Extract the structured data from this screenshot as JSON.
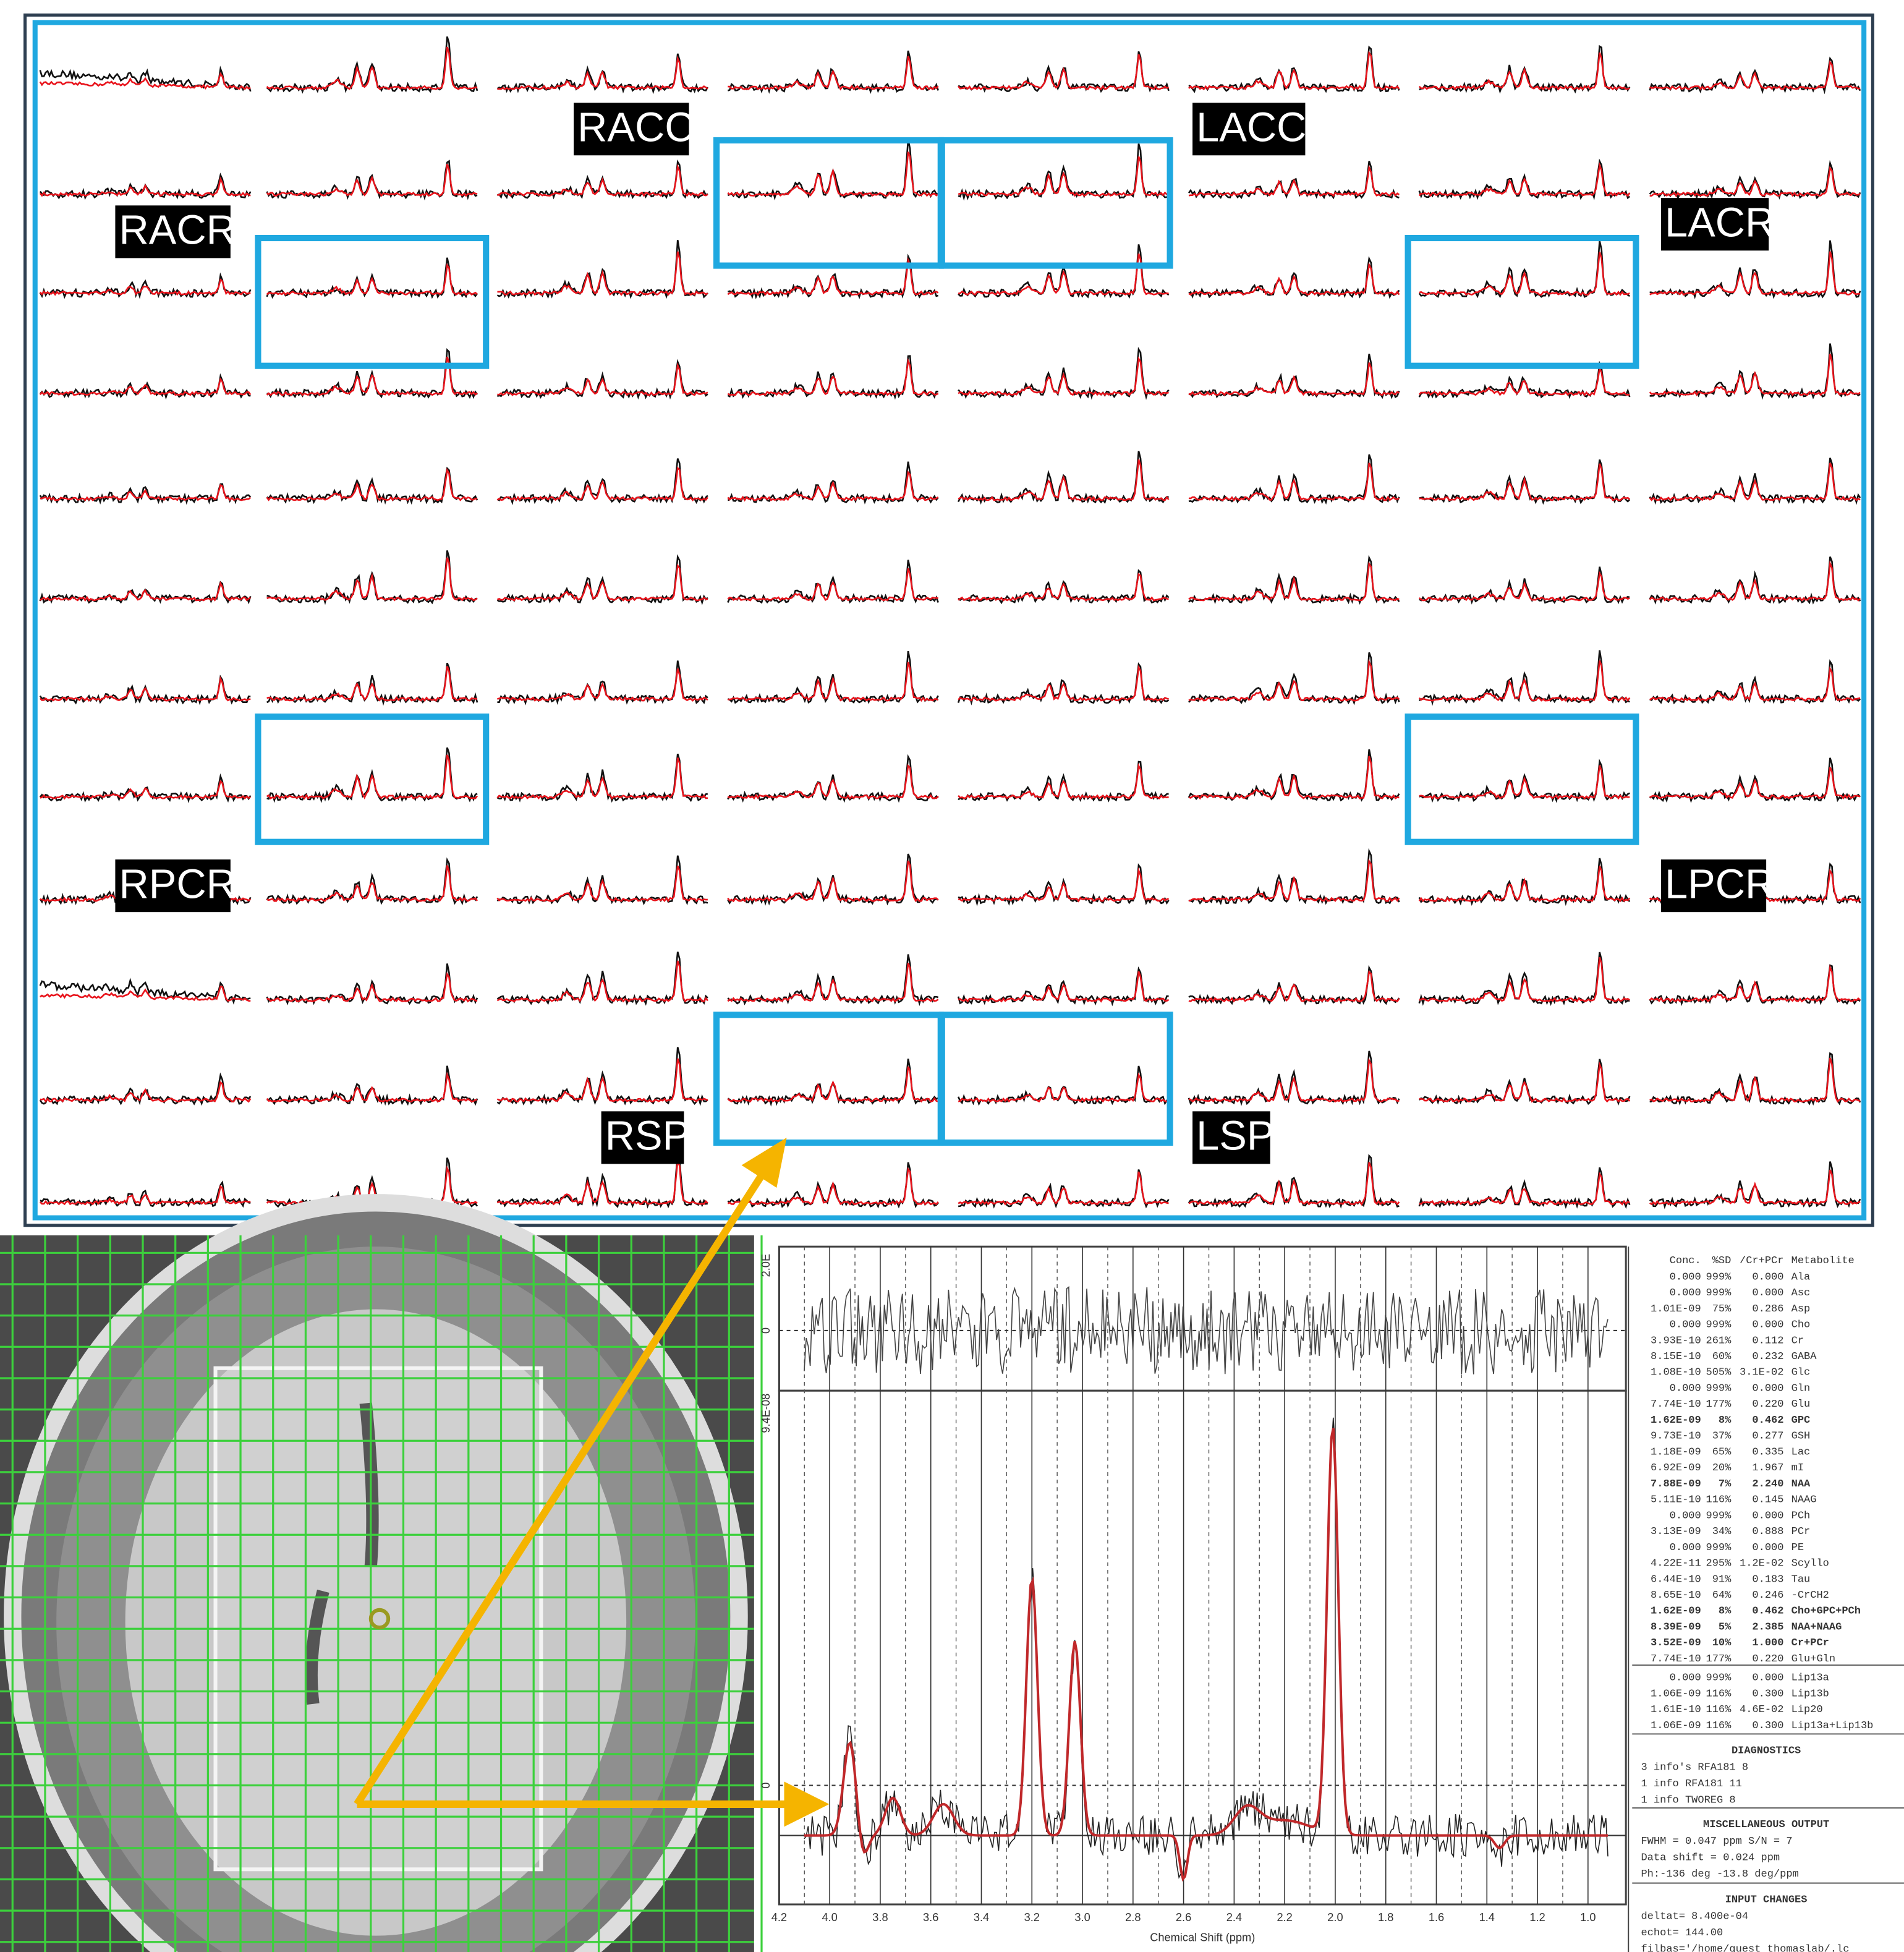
{
  "regions": [
    "RACC",
    "LACC",
    "RACR",
    "LACR",
    "RPCR",
    "LPCR",
    "RSP",
    "LSP"
  ],
  "chart_data": {
    "type": "line",
    "x_label": "Chemical Shift (ppm)",
    "xlim": [
      4.2,
      0.85
    ],
    "xticks": [
      {
        "value": 4.2,
        "label": "4.2"
      },
      {
        "value": 4.0,
        "label": "4.0"
      },
      {
        "value": 3.8,
        "label": "3.8"
      },
      {
        "value": 3.6,
        "label": "3.6"
      },
      {
        "value": 3.4,
        "label": "3.4"
      },
      {
        "value": 3.2,
        "label": "3.2"
      },
      {
        "value": 3.0,
        "label": "3.0"
      },
      {
        "value": 2.8,
        "label": "2.8"
      },
      {
        "value": 2.6,
        "label": "2.6"
      },
      {
        "value": 2.4,
        "label": "2.4"
      },
      {
        "value": 2.2,
        "label": "2.2"
      },
      {
        "value": 2.0,
        "label": "2.0"
      },
      {
        "value": 1.8,
        "label": "1.8"
      },
      {
        "value": 1.6,
        "label": "1.6"
      },
      {
        "value": 1.4,
        "label": "1.4"
      },
      {
        "value": 1.2,
        "label": "1.2"
      },
      {
        "value": 1.0,
        "label": "1.0"
      }
    ],
    "residual_ylabels": [
      "2.0E",
      "0"
    ],
    "spectrum_ylabels": [
      "9.4E-08",
      "0"
    ],
    "fit_color": "#c0282a",
    "data_color": "#222222"
  },
  "table": {
    "header": [
      "Conc.",
      "%SD",
      "/Cr+PCr",
      "Metabolite"
    ],
    "rows": [
      {
        "cells": [
          "0.000",
          "999%",
          "0.000",
          "Ala"
        ]
      },
      {
        "cells": [
          "0.000",
          "999%",
          "0.000",
          "Asc"
        ]
      },
      {
        "cells": [
          "1.01E-09",
          "75%",
          "0.286",
          "Asp"
        ]
      },
      {
        "cells": [
          "0.000",
          "999%",
          "0.000",
          "Cho"
        ]
      },
      {
        "cells": [
          "3.93E-10",
          "261%",
          "0.112",
          "Cr"
        ]
      },
      {
        "cells": [
          "8.15E-10",
          "60%",
          "0.232",
          "GABA"
        ]
      },
      {
        "cells": [
          "1.08E-10",
          "505%",
          "3.1E-02",
          "Glc"
        ]
      },
      {
        "cells": [
          "0.000",
          "999%",
          "0.000",
          "Gln"
        ]
      },
      {
        "cells": [
          "7.74E-10",
          "177%",
          "0.220",
          "Glu"
        ]
      },
      {
        "cells": [
          "1.62E-09",
          "8%",
          "0.462",
          "GPC"
        ],
        "color": "#2b2bb5"
      },
      {
        "cells": [
          "9.73E-10",
          "37%",
          "0.277",
          "GSH"
        ]
      },
      {
        "cells": [
          "1.18E-09",
          "65%",
          "0.335",
          "Lac"
        ]
      },
      {
        "cells": [
          "6.92E-09",
          "20%",
          "1.967",
          "mI"
        ]
      },
      {
        "cells": [
          "7.88E-09",
          "7%",
          "2.240",
          "NAA"
        ],
        "color": "#2b2bb5"
      },
      {
        "cells": [
          "5.11E-10",
          "116%",
          "0.145",
          "NAAG"
        ]
      },
      {
        "cells": [
          "0.000",
          "999%",
          "0.000",
          "PCh"
        ]
      },
      {
        "cells": [
          "3.13E-09",
          "34%",
          "0.888",
          "PCr"
        ]
      },
      {
        "cells": [
          "0.000",
          "999%",
          "0.000",
          "PE"
        ]
      },
      {
        "cells": [
          "4.22E-11",
          "295%",
          "1.2E-02",
          "Scyllo"
        ]
      },
      {
        "cells": [
          "6.44E-10",
          "91%",
          "0.183",
          "Tau"
        ]
      },
      {
        "cells": [
          "8.65E-10",
          "64%",
          "0.246",
          "-CrCH2"
        ]
      },
      {
        "cells": [
          "1.62E-09",
          "8%",
          "0.462",
          "Cho+GPC+PCh"
        ],
        "color": "#2b2bb5"
      },
      {
        "cells": [
          "8.39E-09",
          "5%",
          "2.385",
          "NAA+NAAG"
        ],
        "color": "#2b2bb5"
      },
      {
        "cells": [
          "3.52E-09",
          "10%",
          "1.000",
          "Cr+PCr"
        ],
        "color": "#2b2bb5"
      },
      {
        "cells": [
          "7.74E-10",
          "177%",
          "0.220",
          "Glu+Gln"
        ]
      }
    ],
    "lipid_rows": [
      {
        "cells": [
          "0.000",
          "999%",
          "0.000",
          "Lip13a"
        ]
      },
      {
        "cells": [
          "1.06E-09",
          "116%",
          "0.300",
          "Lip13b"
        ]
      },
      {
        "cells": [
          "1.61E-10",
          "116%",
          "4.6E-02",
          "Lip20"
        ]
      },
      {
        "cells": [
          "1.06E-09",
          "116%",
          "0.300",
          "Lip13a+Lip13b"
        ]
      }
    ]
  },
  "diagnostics": {
    "title": "DIAGNOSTICS",
    "lines": [
      "3 info's     RFA181  8",
      "1 info      RFA181 11",
      "1 info      TWOREG  8"
    ]
  },
  "misc": {
    "title": "MISCELLANEOUS OUTPUT",
    "lines": [
      "FWHM = 0.047 ppm   S/N =  7",
      "Data shift = 0.024 ppm",
      "Ph:-136 deg     -13.8 deg/ppm"
    ]
  },
  "input_changes": {
    "title": "INPUT CHANGES",
    "lines": [
      "deltat= 8.400e-04",
      "echot= 144.00",
      "filbas='/home/guest_thomaslab/.lc"
    ]
  }
}
